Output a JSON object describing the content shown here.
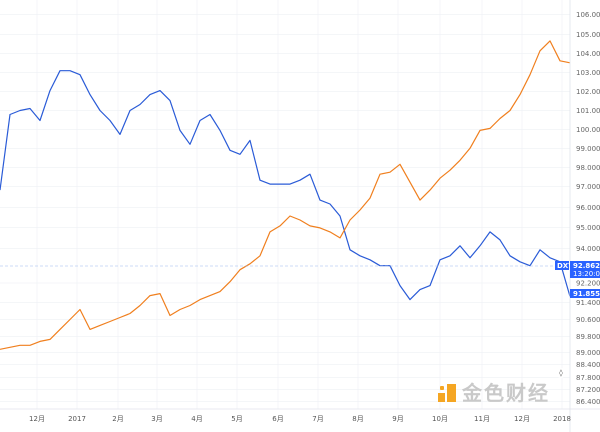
{
  "chart_data": {
    "type": "line",
    "title": "",
    "xlabel": "",
    "ylabel": "",
    "x_tick_labels": [
      "12月",
      "2017",
      "2月",
      "3月",
      "4月",
      "5月",
      "6月",
      "7月",
      "8月",
      "9月",
      "10月",
      "11月",
      "12月",
      "2018"
    ],
    "y_tick_labels": [
      "106.000",
      "105.000",
      "104.000",
      "103.000",
      "102.000",
      "101.000",
      "100.000",
      "99.000",
      "98.000",
      "97.000",
      "96.000",
      "95.000",
      "94.000",
      "92.200",
      "91.400",
      "90.600",
      "89.800",
      "89.000",
      "88.400",
      "87.800",
      "87.200",
      "86.400"
    ],
    "ylim": [
      86.4,
      106.0
    ],
    "grid": true,
    "legend": "none",
    "series": [
      {
        "name": "DXY",
        "color": "#2a5bd7",
        "values": [
          97.2,
          101.0,
          101.2,
          101.3,
          100.7,
          102.2,
          103.2,
          103.2,
          103.0,
          102.0,
          101.2,
          100.7,
          100.0,
          101.2,
          101.5,
          102.0,
          102.2,
          101.7,
          100.2,
          99.5,
          100.7,
          101.0,
          100.2,
          99.2,
          99.0,
          99.7,
          97.7,
          97.5,
          97.5,
          97.5,
          97.7,
          98.0,
          96.7,
          96.5,
          95.9,
          94.2,
          93.9,
          93.7,
          93.4,
          93.4,
          92.4,
          91.7,
          92.2,
          92.4,
          93.7,
          93.9,
          94.4,
          93.8,
          94.4,
          95.1,
          94.7,
          93.9,
          93.6,
          93.4,
          94.2,
          93.8,
          93.6,
          91.855
        ]
      },
      {
        "color": "#f07f1e",
        "values": [
          89.2,
          89.3,
          89.4,
          89.4,
          89.6,
          89.7,
          90.2,
          90.7,
          91.2,
          90.2,
          90.4,
          90.6,
          90.8,
          91.0,
          91.4,
          91.9,
          92.0,
          90.9,
          91.2,
          91.4,
          91.7,
          91.9,
          92.1,
          92.6,
          93.2,
          93.5,
          93.9,
          95.1,
          95.4,
          95.9,
          95.7,
          95.4,
          95.3,
          95.1,
          94.8,
          95.7,
          96.2,
          96.8,
          98.0,
          98.1,
          98.5,
          97.6,
          96.7,
          97.2,
          97.8,
          98.2,
          98.7,
          99.3,
          100.2,
          100.3,
          100.8,
          101.2,
          102.0,
          103.0,
          104.2,
          104.7,
          103.7,
          103.6
        ]
      }
    ],
    "last_price_label": {
      "symbol": "DXY",
      "price": "92.862",
      "time": "13:20:09",
      "current": "91.855",
      "color": "#2962ff"
    }
  },
  "watermark": {
    "text": "金色财经"
  },
  "controls": {
    "reset_icon": "reset-scale-icon",
    "reset_glyph": "◊"
  }
}
